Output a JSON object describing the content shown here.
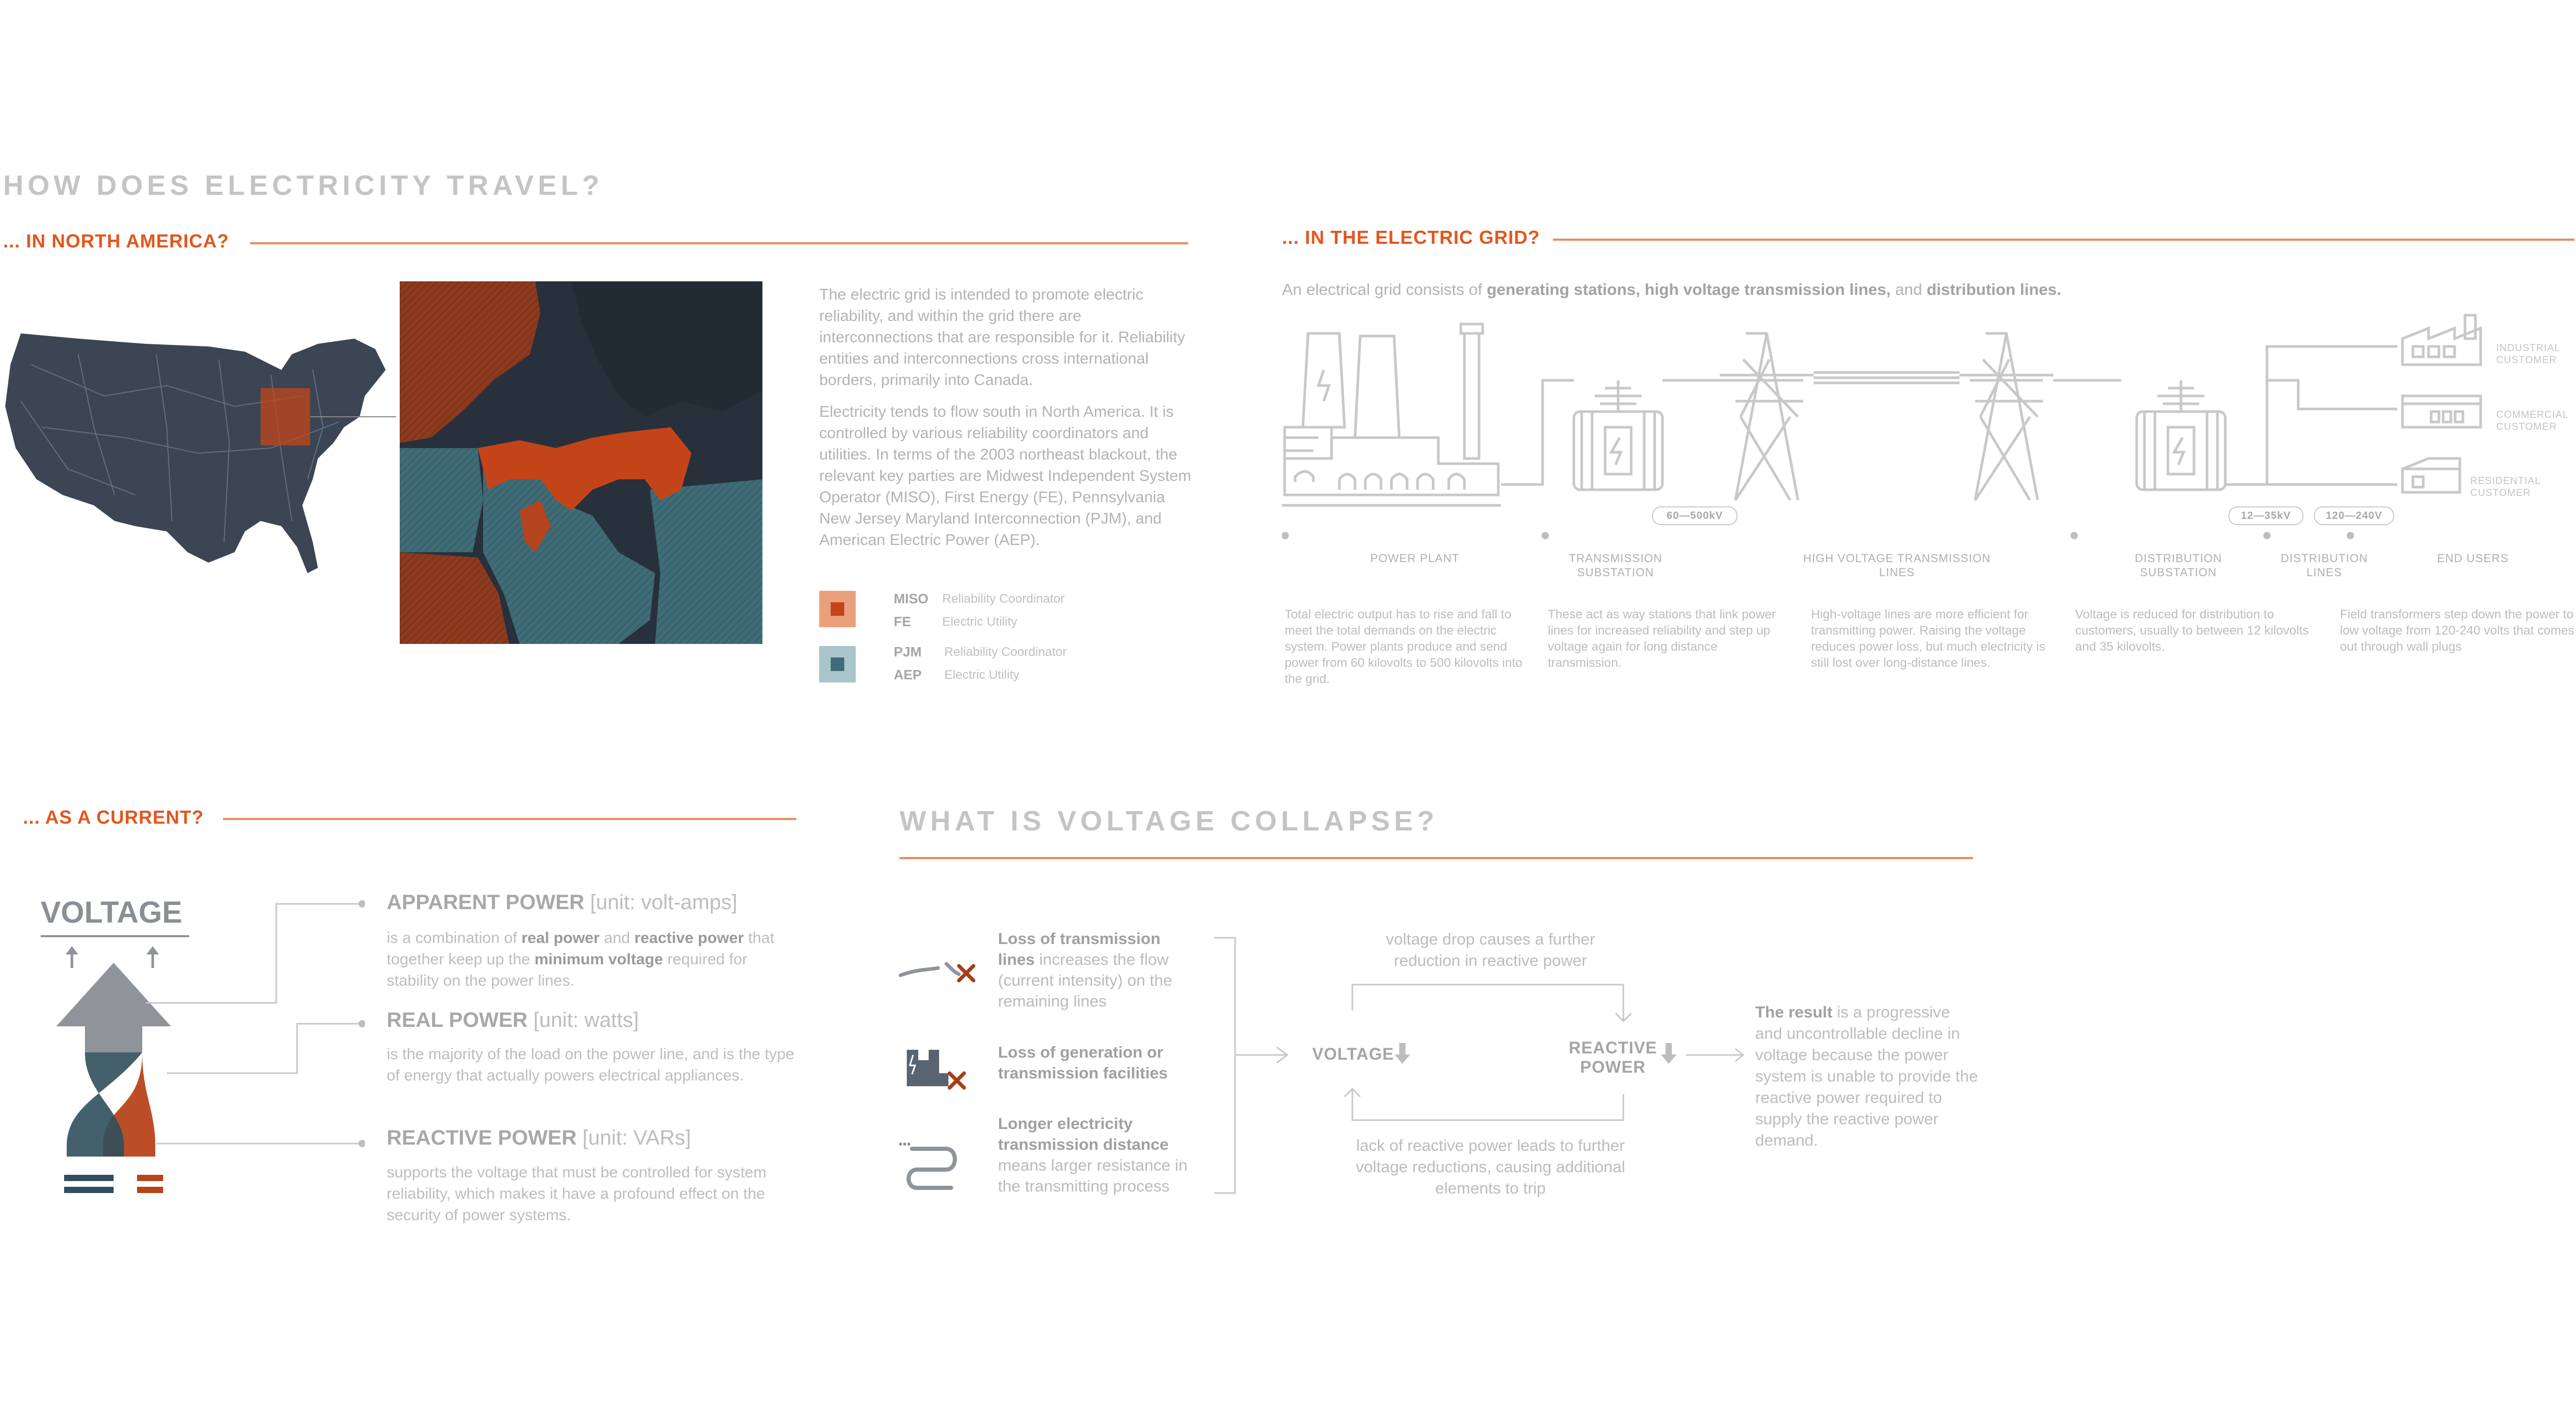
{
  "header": {
    "title": "HOW DOES ELECTRICITY TRAVEL?"
  },
  "north_america": {
    "heading": "... IN NORTH AMERICA?",
    "paragraph1": "The electric grid is intended to promote electric reliability, and within the grid there are interconnections that are responsible for it. Reliability entities and interconnections cross international borders, primarily into Canada.",
    "paragraph2": "Electricity tends to flow south in North America. It is controlled by various reliability coordinators and utilities. In terms of the 2003 northeast blackout, the relevant key parties are Midwest Independent System Operator (MISO), First Energy (FE), Pennsylvania New Jersey Maryland Interconnection (PJM), and American Electric Power (AEP).",
    "legend": [
      {
        "tag": "MISO",
        "desc": "Reliability Coordinator"
      },
      {
        "tag": "FE",
        "desc": "Electric Utility"
      },
      {
        "tag": "PJM",
        "desc": "Reliability Coordinator"
      },
      {
        "tag": "AEP",
        "desc": "Electric Utility"
      }
    ],
    "colors": {
      "miso": "#e98a5e",
      "fe": "#c4441a",
      "pjm": "#a9c5ca",
      "aep": "#3f6c76",
      "map": "#3b4553"
    }
  },
  "grid": {
    "heading": "... IN THE ELECTRIC GRID?",
    "intro_prefix": "An electrical grid consists of ",
    "intro_bold": "generating stations, high voltage transmission lines,",
    "intro_mid": " and ",
    "intro_bold2": "distribution lines.",
    "pills": [
      "60—500kV",
      "12—35kV",
      "120—240V"
    ],
    "stages": [
      {
        "label": "POWER PLANT",
        "desc": "Total electric output has to rise and fall to meet the total demands on the electric system. Power plants produce and send power from 60 kilovolts to 500 kilovolts into the grid."
      },
      {
        "label": "TRANSMISSION SUBSTATION",
        "desc": "These act as way stations that link power lines for increased reliability and step up voltage again for long distance transmission."
      },
      {
        "label": "HIGH VOLTAGE TRANSMISSION LINES",
        "desc": "High-voltage lines are more efficient for transmitting power. Raising the voltage reduces power loss, but much electricity is still lost over long-distance lines."
      },
      {
        "label": "DISTRIBUTION SUBSTATION",
        "desc": "Voltage is reduced for distribution to customers, usually to between 12 kilovolts and 35 kilovolts."
      },
      {
        "label": "DISTRIBUTION LINES",
        "desc": ""
      },
      {
        "label": "END USERS",
        "desc": "Field transformers step down the power to low voltage from 120-240 volts that comes out through wall plugs"
      }
    ],
    "customers": [
      "INDUSTRIAL CUSTOMER",
      "COMMERCIAL CUSTOMER",
      "RESIDENTIAL CUSTOMER"
    ]
  },
  "current": {
    "heading": "... AS A CURRENT?",
    "voltage_label": "VOLTAGE",
    "powers": [
      {
        "name": "APPARENT POWER",
        "unit": " [unit: volt-amps]",
        "desc_html": "is a combination of <b>real power</b> and <b>reactive power</b> that together keep up the <b>minimum voltage</b> required for stability on the power lines."
      },
      {
        "name": "REAL POWER",
        "unit": " [unit: watts]",
        "desc_html": "is the majority of the load on the power line, and is the type of energy that actually powers electrical appliances."
      },
      {
        "name": "REACTIVE POWER",
        "unit": " [unit: VARs]",
        "desc_html": "supports the voltage that must be controlled for system reliability, which makes it have a profound effect on the security of power systems."
      }
    ],
    "colors": {
      "gray": "#8f949a",
      "teal": "#2f4f5c",
      "orange": "#b8441b"
    }
  },
  "collapse": {
    "title": "WHAT IS VOLTAGE COLLAPSE?",
    "causes": [
      {
        "bold": "Loss of transmission lines",
        "rest": " increases the flow (current intensity) on the remaining lines"
      },
      {
        "bold": "Loss of generation or transmission facilities",
        "rest": ""
      },
      {
        "bold": "Longer electricity transmission distance",
        "rest": " means larger resistance in the transmitting process"
      }
    ],
    "top_text": "voltage drop causes a further reduction in reactive power",
    "bottom_text": "lack of reactive power leads to further voltage reductions, causing additional elements to trip",
    "node_voltage": "VOLTAGE",
    "node_reactive": "REACTIVE POWER",
    "result_bold": "The result",
    "result_rest": " is a progressive and uncontrollable decline in voltage because the power system is unable to provide the reactive power required to supply the reactive power demand."
  }
}
